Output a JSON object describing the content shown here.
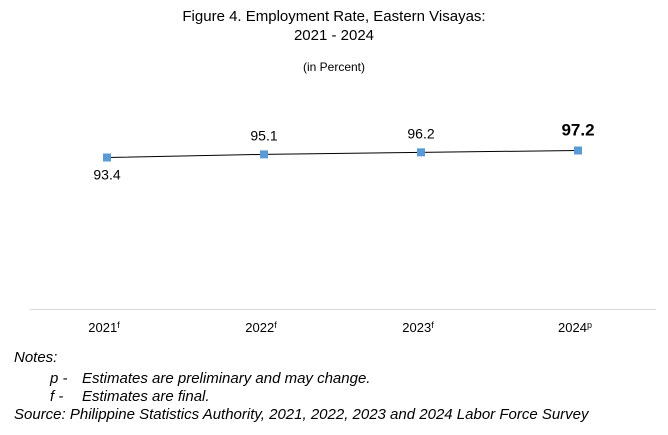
{
  "title_line1": "Figure 4. Employment Rate, Eastern Visayas:",
  "title_line2": "2021 - 2024",
  "subtitle": "(in Percent)",
  "chart_data": {
    "type": "line",
    "title": "Figure 4. Employment Rate, Eastern Visayas: 2021 - 2024",
    "subtitle": "(in Percent)",
    "xlabel": "",
    "ylabel": "",
    "categories": [
      "2021",
      "2022",
      "2023",
      "2024"
    ],
    "category_superscripts": [
      "f",
      "f",
      "f",
      "p"
    ],
    "series": [
      {
        "values": [
          93.4,
          95.1,
          96.2,
          97.2
        ],
        "color": "#5b9bd5"
      }
    ],
    "data_labels": [
      "93.4",
      "95.1",
      "96.2",
      "97.2"
    ],
    "highlighted_label": "97.2",
    "grid": false,
    "legend": "none",
    "line_color": "#000000",
    "marker": "square"
  },
  "notes": {
    "heading": "Notes:",
    "items": [
      {
        "key": "p -",
        "text": "Estimates are preliminary and may change."
      },
      {
        "key": "f -",
        "text": "Estimates are final."
      }
    ],
    "source": "Source: Philippine Statistics Authority, 2021, 2022, 2023 and 2024 Labor Force Survey"
  }
}
